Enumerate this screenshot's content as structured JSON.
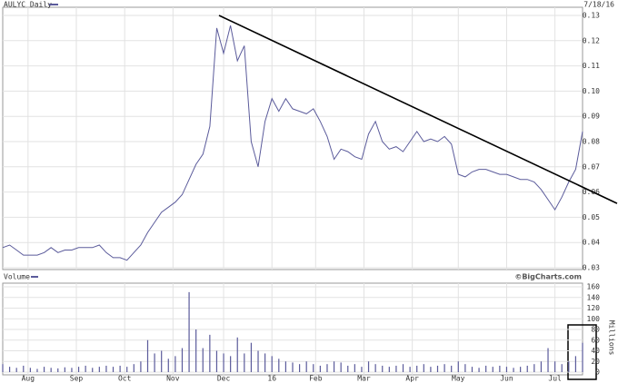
{
  "chart_data": [
    {
      "type": "line",
      "title": "AULYC Daily",
      "date": "7/18/16",
      "color": "#5b5b9b",
      "grid": true,
      "x": [
        0,
        3,
        6,
        9,
        12,
        15,
        18,
        21,
        24,
        27,
        30,
        33,
        36,
        39,
        42,
        45,
        48,
        51,
        54,
        57,
        60,
        63,
        66,
        69,
        72,
        75,
        78,
        81,
        84,
        87,
        90,
        93,
        96,
        99,
        102,
        105,
        108,
        111,
        114,
        117,
        120,
        123,
        126,
        129,
        132,
        135,
        138,
        141,
        144,
        147,
        150,
        153,
        156,
        159,
        162,
        165,
        168,
        171,
        174,
        177,
        180,
        183,
        186,
        189,
        192,
        195,
        198,
        201,
        204,
        207,
        210,
        213,
        216,
        219,
        222,
        225,
        228,
        231,
        234,
        237,
        240,
        243,
        246,
        249,
        252
      ],
      "values": [
        0.038,
        0.039,
        0.037,
        0.035,
        0.035,
        0.035,
        0.036,
        0.038,
        0.036,
        0.037,
        0.037,
        0.038,
        0.038,
        0.038,
        0.039,
        0.036,
        0.034,
        0.034,
        0.033,
        0.036,
        0.039,
        0.044,
        0.048,
        0.052,
        0.054,
        0.056,
        0.059,
        0.065,
        0.071,
        0.075,
        0.086,
        0.125,
        0.115,
        0.126,
        0.112,
        0.118,
        0.08,
        0.07,
        0.088,
        0.097,
        0.092,
        0.097,
        0.093,
        0.092,
        0.091,
        0.093,
        0.088,
        0.082,
        0.073,
        0.077,
        0.076,
        0.074,
        0.073,
        0.083,
        0.088,
        0.08,
        0.077,
        0.078,
        0.076,
        0.08,
        0.084,
        0.08,
        0.081,
        0.08,
        0.082,
        0.079,
        0.067,
        0.066,
        0.068,
        0.069,
        0.069,
        0.068,
        0.067,
        0.067,
        0.066,
        0.065,
        0.065,
        0.064,
        0.061,
        0.057,
        0.053,
        0.058,
        0.064,
        0.069,
        0.084
      ],
      "xlim": [
        0,
        252
      ],
      "ylim": [
        0.03,
        0.13
      ],
      "yticks": [
        0.03,
        0.04,
        0.05,
        0.06,
        0.07,
        0.08,
        0.09,
        {
          "value": 0.1,
          "label": "0.10"
        },
        0.11,
        0.12,
        0.13
      ],
      "trendline": {
        "x": [
          94,
          267
        ],
        "values": [
          0.13,
          0.0555
        ],
        "color": "#000000"
      }
    },
    {
      "type": "bar",
      "title": "Volume",
      "source": "©BigCharts.com",
      "y_label": "Millions",
      "color": "#5b5b9b",
      "grid": true,
      "x": [
        0,
        3,
        6,
        9,
        12,
        15,
        18,
        21,
        24,
        27,
        30,
        33,
        36,
        39,
        42,
        45,
        48,
        51,
        54,
        57,
        60,
        63,
        66,
        69,
        72,
        75,
        78,
        81,
        84,
        87,
        90,
        93,
        96,
        99,
        102,
        105,
        108,
        111,
        114,
        117,
        120,
        123,
        126,
        129,
        132,
        135,
        138,
        141,
        144,
        147,
        150,
        153,
        156,
        159,
        162,
        165,
        168,
        171,
        174,
        177,
        180,
        183,
        186,
        189,
        192,
        195,
        198,
        201,
        204,
        207,
        210,
        213,
        216,
        219,
        222,
        225,
        228,
        231,
        234,
        237,
        240,
        243,
        246,
        249,
        252
      ],
      "values": [
        15,
        10,
        8,
        12,
        8,
        6,
        10,
        8,
        7,
        9,
        8,
        10,
        12,
        8,
        10,
        12,
        10,
        12,
        10,
        15,
        20,
        60,
        35,
        40,
        25,
        30,
        45,
        150,
        80,
        45,
        70,
        40,
        35,
        30,
        65,
        35,
        55,
        40,
        35,
        30,
        25,
        20,
        18,
        15,
        20,
        15,
        12,
        15,
        20,
        18,
        12,
        15,
        10,
        20,
        15,
        12,
        10,
        12,
        15,
        10,
        12,
        15,
        10,
        12,
        15,
        12,
        20,
        15,
        10,
        8,
        12,
        10,
        12,
        10,
        8,
        10,
        12,
        15,
        20,
        45,
        20,
        15,
        20,
        30,
        55
      ],
      "xlim": [
        0,
        252
      ],
      "ylim": [
        0,
        160
      ],
      "xticks": [
        {
          "value": 11,
          "label": "Aug"
        },
        {
          "value": 32,
          "label": "Sep"
        },
        {
          "value": 53,
          "label": "Oct"
        },
        {
          "value": 74,
          "label": "Nov"
        },
        {
          "value": 96,
          "label": "Dec"
        },
        {
          "value": 117,
          "label": "16"
        },
        {
          "value": 136,
          "label": "Feb"
        },
        {
          "value": 157,
          "label": "Mar"
        },
        {
          "value": 178,
          "label": "Apr"
        },
        {
          "value": 198,
          "label": "May"
        },
        {
          "value": 219,
          "label": "Jun"
        },
        {
          "value": 240,
          "label": "Jul"
        }
      ],
      "yticks": [
        0,
        20,
        40,
        60,
        80,
        100,
        120,
        140,
        160
      ]
    }
  ]
}
